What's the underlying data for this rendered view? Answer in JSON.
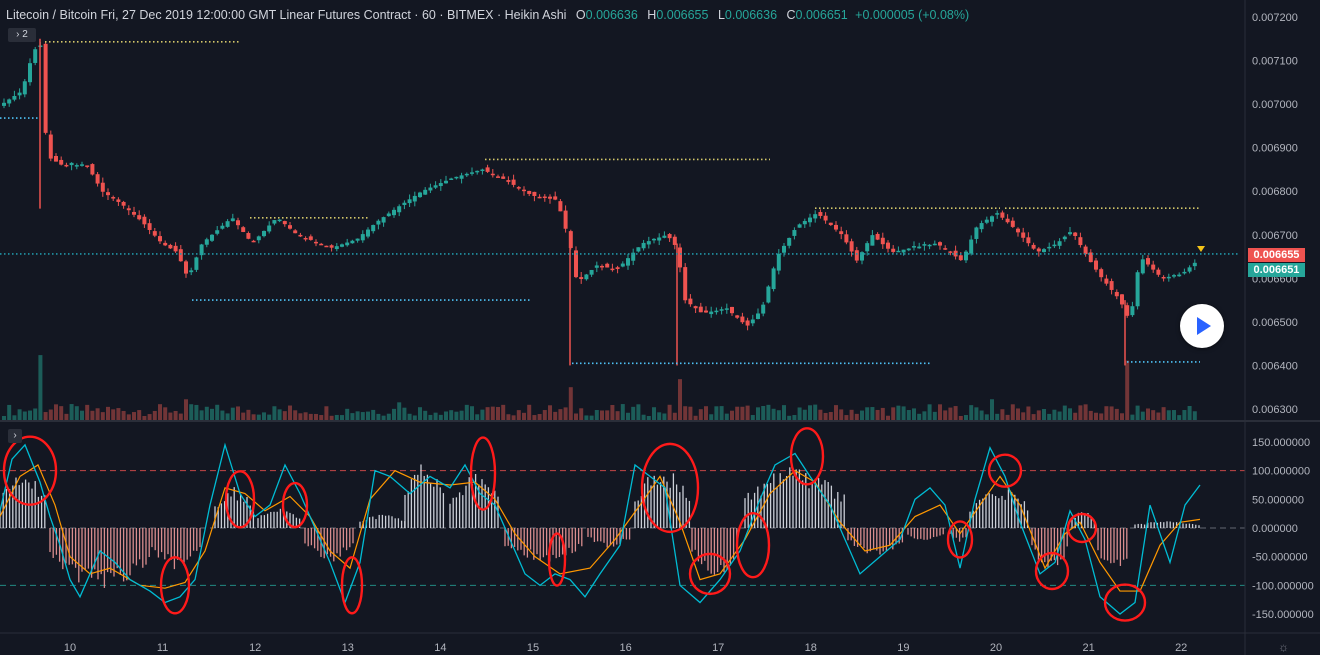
{
  "header": {
    "symbol": "Litecoin / Bitcoin Fri, 27 Dec 2019 12:00:00 GMT Linear Futures Contract · 60 · BITMEX · Heikin Ashi",
    "o_label": "O",
    "o_value": "0.006636",
    "h_label": "H",
    "h_value": "0.006655",
    "l_label": "L",
    "l_value": "0.006636",
    "c_label": "C",
    "c_value": "0.006651",
    "change": "+0.000005 (+0.08%)"
  },
  "controls": {
    "collapse_label": "› 2",
    "expand_label": "›"
  },
  "price_tags": {
    "upper": "0.006655",
    "lower": "0.006651"
  },
  "colors": {
    "background": "#131722",
    "up": "#26a69a",
    "down": "#ef5350",
    "oscillator_line": "#00bcd4",
    "signal_line": "#ff9800",
    "marker": "#ff1a1a"
  },
  "chart_data": [
    {
      "type": "candlestick",
      "series_name": "Heikin Ashi",
      "y_axis_labels": [
        "0.007200",
        "0.007100",
        "0.007000",
        "0.006900",
        "0.006800",
        "0.006700",
        "0.006600",
        "0.006500",
        "0.006400",
        "0.006300"
      ],
      "ylim": [
        0.00628,
        0.00723
      ],
      "x_axis_labels": [
        "10",
        "11",
        "12",
        "13",
        "14",
        "15",
        "16",
        "17",
        "18",
        "19",
        "20",
        "21",
        "22"
      ],
      "close_path": [
        [
          0,
          0.007
        ],
        [
          20,
          0.00703
        ],
        [
          30,
          0.00711
        ],
        [
          38,
          0.00715
        ],
        [
          45,
          0.00688
        ],
        [
          60,
          0.00686
        ],
        [
          85,
          0.00686
        ],
        [
          100,
          0.0068
        ],
        [
          120,
          0.00677
        ],
        [
          140,
          0.00673
        ],
        [
          160,
          0.00668
        ],
        [
          175,
          0.00666
        ],
        [
          186,
          0.0066
        ],
        [
          200,
          0.00668
        ],
        [
          230,
          0.00674
        ],
        [
          250,
          0.00668
        ],
        [
          275,
          0.00674
        ],
        [
          295,
          0.0067
        ],
        [
          330,
          0.00667
        ],
        [
          355,
          0.00669
        ],
        [
          375,
          0.00673
        ],
        [
          400,
          0.00677
        ],
        [
          420,
          0.0068
        ],
        [
          450,
          0.00683
        ],
        [
          480,
          0.00685
        ],
        [
          500,
          0.00683
        ],
        [
          530,
          0.00679
        ],
        [
          555,
          0.00678
        ],
        [
          568,
          0.00668
        ],
        [
          575,
          0.00659
        ],
        [
          595,
          0.00663
        ],
        [
          615,
          0.00662
        ],
        [
          640,
          0.00668
        ],
        [
          665,
          0.0067
        ],
        [
          675,
          0.00667
        ],
        [
          683,
          0.00655
        ],
        [
          700,
          0.00652
        ],
        [
          725,
          0.00653
        ],
        [
          745,
          0.00649
        ],
        [
          760,
          0.00653
        ],
        [
          775,
          0.00665
        ],
        [
          795,
          0.00672
        ],
        [
          815,
          0.00675
        ],
        [
          840,
          0.0067
        ],
        [
          855,
          0.00664
        ],
        [
          870,
          0.0067
        ],
        [
          890,
          0.00666
        ],
        [
          910,
          0.00667
        ],
        [
          935,
          0.00668
        ],
        [
          960,
          0.00664
        ],
        [
          975,
          0.00672
        ],
        [
          995,
          0.00675
        ],
        [
          1010,
          0.00672
        ],
        [
          1035,
          0.00666
        ],
        [
          1055,
          0.00668
        ],
        [
          1070,
          0.00671
        ],
        [
          1085,
          0.00665
        ],
        [
          1100,
          0.0066
        ],
        [
          1118,
          0.00655
        ],
        [
          1128,
          0.0065
        ],
        [
          1138,
          0.00665
        ],
        [
          1160,
          0.0066
        ],
        [
          1180,
          0.00661
        ],
        [
          1200,
          0.00665
        ]
      ],
      "horizontal_levels": [
        {
          "value": 0.007143,
          "from": 45,
          "to": 240,
          "color": "#d4c86a"
        },
        {
          "value": 0.006968,
          "from": 0,
          "to": 40,
          "color": "#4fc3f7"
        },
        {
          "value": 0.006873,
          "from": 485,
          "to": 770,
          "color": "#d4c86a"
        },
        {
          "value": 0.006739,
          "from": 250,
          "to": 370,
          "color": "#d4c86a"
        },
        {
          "value": 0.006761,
          "from": 815,
          "to": 1000,
          "color": "#d4c86a"
        },
        {
          "value": 0.006761,
          "from": 1005,
          "to": 1200,
          "color": "#d4c86a"
        },
        {
          "value": 0.00655,
          "from": 192,
          "to": 530,
          "color": "#4fc3f7"
        },
        {
          "value": 0.006405,
          "from": 572,
          "to": 930,
          "color": "#4fc3f7"
        },
        {
          "value": 0.006408,
          "from": 1127,
          "to": 1200,
          "color": "#4fc3f7"
        },
        {
          "value": 0.006656,
          "from": 0,
          "to": 1240,
          "color": "#2196a8"
        }
      ]
    },
    {
      "type": "oscillator",
      "y_axis_labels": [
        "150.000000",
        "100.000000",
        "50.000000",
        "0.000000",
        "-50.000000",
        "-100.000000",
        "-150.000000"
      ],
      "ylim": [
        -178,
        170
      ],
      "levels": [
        100,
        0,
        -100
      ],
      "oscillator_path": [
        [
          0,
          30
        ],
        [
          12,
          120
        ],
        [
          25,
          145
        ],
        [
          40,
          80
        ],
        [
          50,
          20
        ],
        [
          60,
          -30
        ],
        [
          70,
          -90
        ],
        [
          80,
          -120
        ],
        [
          90,
          -80
        ],
        [
          100,
          -40
        ],
        [
          115,
          -60
        ],
        [
          130,
          -90
        ],
        [
          150,
          -110
        ],
        [
          165,
          -130
        ],
        [
          180,
          -120
        ],
        [
          195,
          -90
        ],
        [
          210,
          40
        ],
        [
          225,
          145
        ],
        [
          240,
          60
        ],
        [
          255,
          20
        ],
        [
          270,
          40
        ],
        [
          285,
          110
        ],
        [
          300,
          60
        ],
        [
          315,
          0
        ],
        [
          330,
          -60
        ],
        [
          345,
          -130
        ],
        [
          360,
          -60
        ],
        [
          375,
          100
        ],
        [
          390,
          90
        ],
        [
          410,
          60
        ],
        [
          430,
          90
        ],
        [
          450,
          70
        ],
        [
          465,
          110
        ],
        [
          480,
          60
        ],
        [
          495,
          40
        ],
        [
          510,
          -20
        ],
        [
          525,
          -80
        ],
        [
          540,
          -100
        ],
        [
          555,
          -80
        ],
        [
          570,
          -90
        ],
        [
          585,
          -120
        ],
        [
          600,
          -80
        ],
        [
          620,
          -30
        ],
        [
          635,
          110
        ],
        [
          650,
          90
        ],
        [
          665,
          70
        ],
        [
          680,
          -100
        ],
        [
          700,
          -130
        ],
        [
          720,
          -90
        ],
        [
          740,
          -40
        ],
        [
          760,
          50
        ],
        [
          775,
          110
        ],
        [
          795,
          130
        ],
        [
          810,
          90
        ],
        [
          830,
          40
        ],
        [
          845,
          -20
        ],
        [
          860,
          -80
        ],
        [
          880,
          -50
        ],
        [
          900,
          -20
        ],
        [
          915,
          50
        ],
        [
          930,
          70
        ],
        [
          945,
          40
        ],
        [
          960,
          -70
        ],
        [
          975,
          50
        ],
        [
          990,
          140
        ],
        [
          1005,
          90
        ],
        [
          1020,
          10
        ],
        [
          1040,
          -80
        ],
        [
          1055,
          -60
        ],
        [
          1070,
          30
        ],
        [
          1085,
          -20
        ],
        [
          1100,
          -120
        ],
        [
          1120,
          -150
        ],
        [
          1135,
          -130
        ],
        [
          1150,
          40
        ],
        [
          1170,
          -60
        ],
        [
          1185,
          40
        ],
        [
          1200,
          75
        ]
      ],
      "signal_path": [
        [
          0,
          20
        ],
        [
          20,
          90
        ],
        [
          38,
          110
        ],
        [
          55,
          40
        ],
        [
          70,
          -50
        ],
        [
          90,
          -80
        ],
        [
          110,
          -70
        ],
        [
          140,
          -100
        ],
        [
          165,
          -105
        ],
        [
          185,
          -95
        ],
        [
          205,
          -40
        ],
        [
          225,
          70
        ],
        [
          245,
          60
        ],
        [
          265,
          30
        ],
        [
          290,
          55
        ],
        [
          310,
          20
        ],
        [
          330,
          -40
        ],
        [
          350,
          -70
        ],
        [
          370,
          50
        ],
        [
          395,
          100
        ],
        [
          420,
          80
        ],
        [
          450,
          75
        ],
        [
          475,
          80
        ],
        [
          495,
          50
        ],
        [
          515,
          -10
        ],
        [
          535,
          -50
        ],
        [
          560,
          -80
        ],
        [
          590,
          -70
        ],
        [
          615,
          -20
        ],
        [
          640,
          40
        ],
        [
          660,
          90
        ],
        [
          680,
          10
        ],
        [
          700,
          -90
        ],
        [
          720,
          -80
        ],
        [
          745,
          -20
        ],
        [
          770,
          60
        ],
        [
          795,
          100
        ],
        [
          815,
          80
        ],
        [
          840,
          10
        ],
        [
          865,
          -40
        ],
        [
          890,
          -30
        ],
        [
          915,
          20
        ],
        [
          940,
          40
        ],
        [
          960,
          -10
        ],
        [
          980,
          40
        ],
        [
          1000,
          90
        ],
        [
          1020,
          40
        ],
        [
          1045,
          -70
        ],
        [
          1065,
          -10
        ],
        [
          1080,
          10
        ],
        [
          1100,
          -60
        ],
        [
          1120,
          -110
        ],
        [
          1140,
          -110
        ],
        [
          1160,
          -30
        ],
        [
          1180,
          10
        ],
        [
          1200,
          15
        ]
      ],
      "histogram_segments": [
        {
          "from": 0,
          "to": 48,
          "value": 80
        },
        {
          "from": 50,
          "to": 150,
          "value": -90
        },
        {
          "from": 152,
          "to": 200,
          "value": -60
        },
        {
          "from": 215,
          "to": 255,
          "value": 60
        },
        {
          "from": 258,
          "to": 300,
          "value": 30
        },
        {
          "from": 305,
          "to": 355,
          "value": -50
        },
        {
          "from": 360,
          "to": 405,
          "value": 20
        },
        {
          "from": 405,
          "to": 445,
          "value": 95
        },
        {
          "from": 450,
          "to": 500,
          "value": 80
        },
        {
          "from": 505,
          "to": 585,
          "value": -50
        },
        {
          "from": 588,
          "to": 630,
          "value": -30
        },
        {
          "from": 635,
          "to": 690,
          "value": 90
        },
        {
          "from": 692,
          "to": 740,
          "value": -70
        },
        {
          "from": 745,
          "to": 845,
          "value": 90
        },
        {
          "from": 848,
          "to": 905,
          "value": -40
        },
        {
          "from": 908,
          "to": 945,
          "value": -20
        },
        {
          "from": 950,
          "to": 968,
          "value": -20
        },
        {
          "from": 970,
          "to": 1030,
          "value": 60
        },
        {
          "from": 1032,
          "to": 1070,
          "value": -60
        },
        {
          "from": 1072,
          "to": 1095,
          "value": 25
        },
        {
          "from": 1098,
          "to": 1130,
          "value": -70
        },
        {
          "from": 1135,
          "to": 1200,
          "value": 10
        }
      ],
      "markers": [
        {
          "x": 30,
          "value": 100,
          "rx": 26,
          "ry": 34
        },
        {
          "x": 175,
          "value": -100,
          "rx": 14,
          "ry": 28
        },
        {
          "x": 240,
          "value": 50,
          "rx": 14,
          "ry": 28
        },
        {
          "x": 295,
          "value": 40,
          "rx": 12,
          "ry": 22
        },
        {
          "x": 352,
          "value": -100,
          "rx": 10,
          "ry": 28
        },
        {
          "x": 483,
          "value": 95,
          "rx": 12,
          "ry": 36
        },
        {
          "x": 557,
          "value": -55,
          "rx": 8,
          "ry": 26
        },
        {
          "x": 670,
          "value": 70,
          "rx": 28,
          "ry": 44
        },
        {
          "x": 710,
          "value": -80,
          "rx": 20,
          "ry": 20
        },
        {
          "x": 753,
          "value": -30,
          "rx": 16,
          "ry": 32
        },
        {
          "x": 807,
          "value": 125,
          "rx": 16,
          "ry": 28
        },
        {
          "x": 960,
          "value": -20,
          "rx": 12,
          "ry": 18
        },
        {
          "x": 1005,
          "value": 100,
          "rx": 16,
          "ry": 16
        },
        {
          "x": 1052,
          "value": -75,
          "rx": 16,
          "ry": 18
        },
        {
          "x": 1082,
          "value": 0,
          "rx": 14,
          "ry": 14
        },
        {
          "x": 1125,
          "value": -130,
          "rx": 20,
          "ry": 18
        }
      ]
    }
  ]
}
